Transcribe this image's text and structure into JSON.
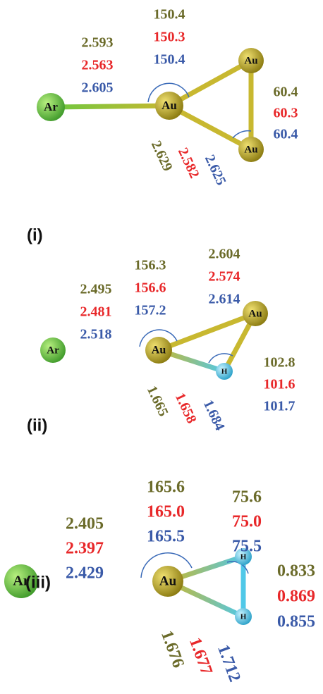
{
  "panels": [
    {
      "label": "(i)",
      "atoms": [
        "Ar",
        "Au",
        "Au",
        "Au"
      ],
      "values": [
        [
          "2.593",
          "2.563",
          "2.605"
        ],
        [
          "150.4",
          "150.3",
          "150.4"
        ],
        [
          "60.4",
          "60.3",
          "60.4"
        ],
        [
          "2.629",
          "2.582",
          "2.625"
        ]
      ]
    },
    {
      "label": "(ii)",
      "atoms": [
        "Ar",
        "Au",
        "Au",
        "H"
      ],
      "values": [
        [
          "2.495",
          "2.481",
          "2.518"
        ],
        [
          "156.3",
          "156.6",
          "157.2"
        ],
        [
          "2.604",
          "2.574",
          "2.614"
        ],
        [
          "102.8",
          "101.6",
          "101.7"
        ],
        [
          "1.665",
          "1.658",
          "1.684"
        ]
      ]
    },
    {
      "label": "(iii)",
      "atoms": [
        "Ar",
        "Au",
        "H",
        "H"
      ],
      "values": [
        [
          "2.405",
          "2.397",
          "2.429"
        ],
        [
          "165.6",
          "165.0",
          "165.5"
        ],
        [
          "75.6",
          "75.0",
          "75.5"
        ],
        [
          "0.833",
          "0.869",
          "0.855"
        ],
        [
          "1.676",
          "1.677",
          "1.712"
        ]
      ]
    }
  ]
}
